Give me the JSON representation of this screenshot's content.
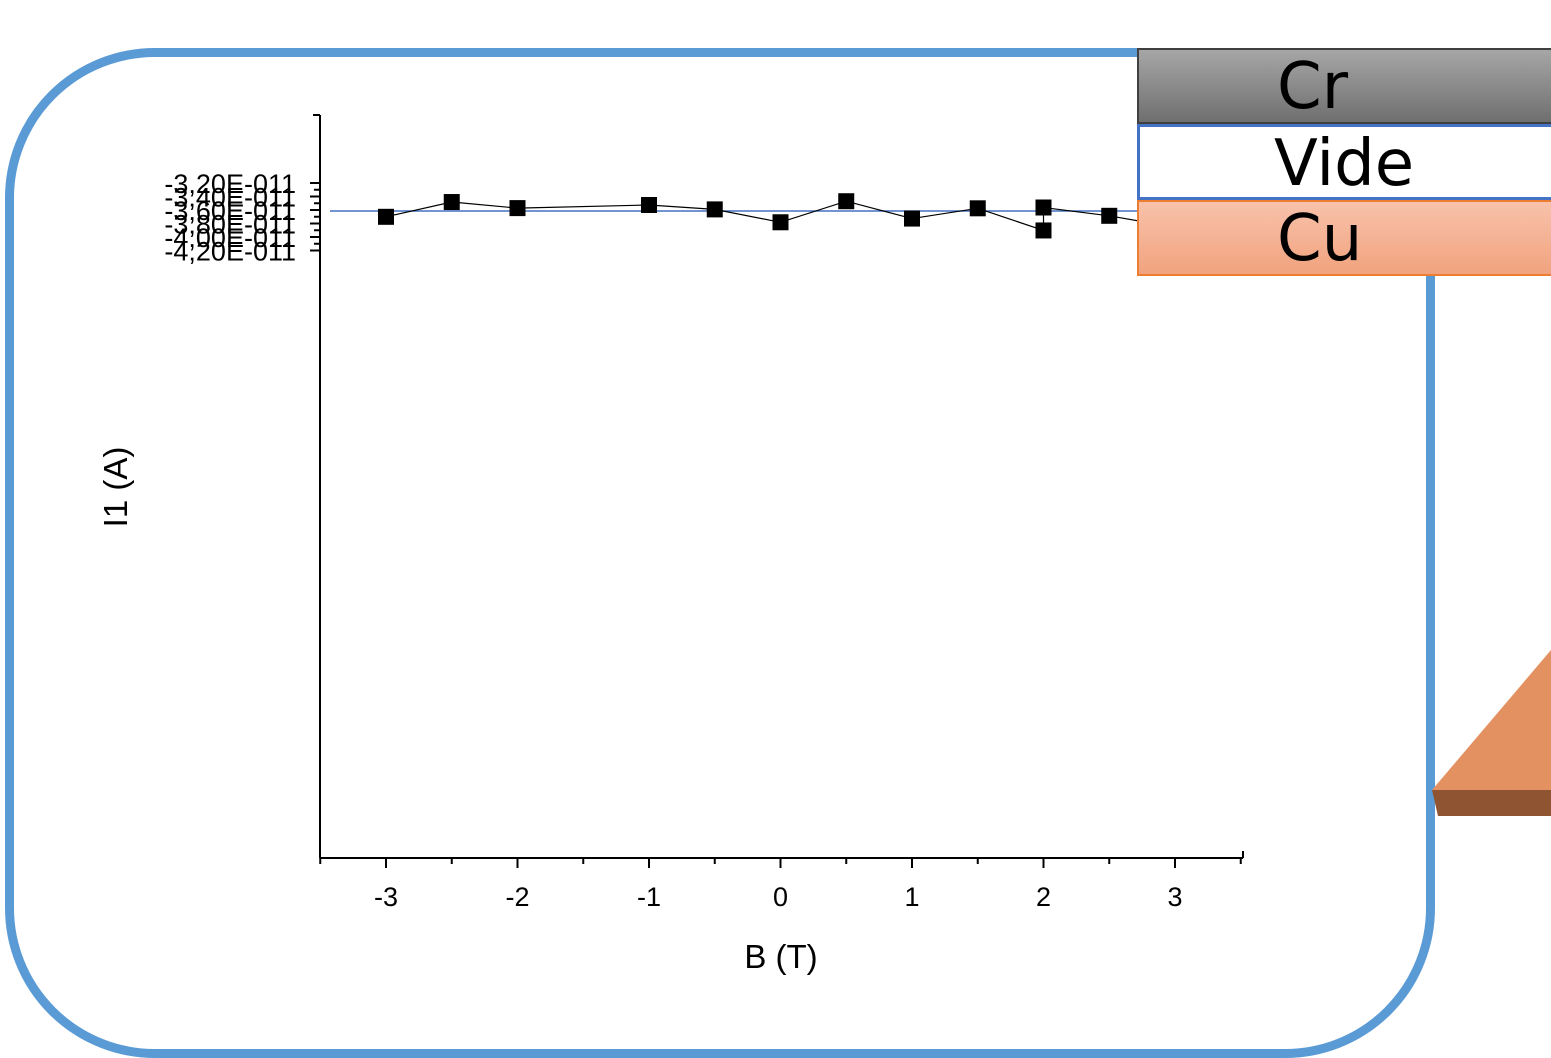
{
  "chart_data": {
    "type": "line",
    "xlabel": "B (T)",
    "ylabel": "I1 (A)",
    "xlim": [
      -3.5,
      3.5
    ],
    "ylim": [
      -4.2e-11,
      -3.1e-11
    ],
    "x_ticks": [
      -3,
      -2,
      -1,
      0,
      1,
      2,
      3
    ],
    "x_tick_labels": [
      "-3",
      "-2",
      "-1",
      "0",
      "1",
      "2",
      "3"
    ],
    "y_ticks": [
      -3.2e-11,
      -3.4e-11,
      -3.6e-11,
      -3.8e-11,
      -4e-11,
      -4.2e-11
    ],
    "y_tick_labels": [
      "-3,20E-011",
      "-3,40E-011",
      "-3,60E-011",
      "-3,80E-011",
      "-4,00E-011",
      "-4,20E-011"
    ],
    "grid": false,
    "series": [
      {
        "marker": "square",
        "color": "#000000",
        "points": [
          [
            -3,
            -3.701e-11
          ],
          [
            -2.5,
            -3.482e-11
          ],
          [
            -2,
            -3.572e-11
          ],
          [
            -1,
            -3.526e-11
          ],
          [
            -0.5,
            -3.591e-11
          ],
          [
            0,
            -3.782e-11
          ],
          [
            0.5,
            -3.47e-11
          ],
          [
            1,
            -3.727e-11
          ],
          [
            1.5,
            -3.575e-11
          ],
          [
            2,
            -3.903e-11
          ],
          [
            2,
            -3.563e-11
          ],
          [
            2.5,
            -3.686e-11
          ],
          [
            3,
            -3.856e-11
          ]
        ]
      }
    ],
    "reference_line": {
      "y": -3.614e-11,
      "color": "#4472c4"
    }
  },
  "layers": [
    {
      "label": "Cr",
      "color": "#8c8c8c"
    },
    {
      "label": "Vide",
      "color": "#ffffff"
    },
    {
      "label": "Cu",
      "color": "#f4b183"
    }
  ],
  "colors": {
    "frame": "#5b9bd5",
    "copper": "#e49162",
    "copper_dark": "#8f5533"
  }
}
